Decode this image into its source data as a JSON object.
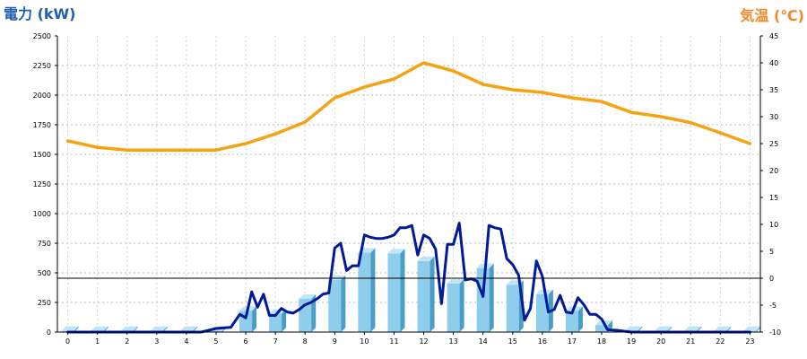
{
  "chart_data": {
    "type": "bar-line-combo",
    "left_axis_title": "電力 (kW)",
    "right_axis_title": "気温 (℃)",
    "left_axis_color": "#1F5FAD",
    "right_axis_color": "#F08A24",
    "x_ticks": [
      "0",
      "1",
      "2",
      "3",
      "4",
      "5",
      "6",
      "7",
      "8",
      "9",
      "10",
      "11",
      "12",
      "13",
      "14",
      "15",
      "16",
      "17",
      "18",
      "19",
      "20",
      "21",
      "22",
      "23"
    ],
    "y_left_ticks": [
      "0",
      "250",
      "500",
      "750",
      "1000",
      "1250",
      "1500",
      "1750",
      "2000",
      "2250",
      "2500"
    ],
    "y_right_ticks": [
      "-10",
      "-5",
      "0",
      "5",
      "10",
      "15",
      "20",
      "25",
      "30",
      "35",
      "40",
      "45"
    ],
    "ylim_left": [
      0,
      2500
    ],
    "ylim_right": [
      -10,
      45
    ],
    "xlim": [
      -0.35,
      23.35
    ],
    "grid": true,
    "series": [
      {
        "name": "",
        "type": "bar",
        "axis": "left",
        "color": "#8ECDEB",
        "x": [
          0,
          1,
          2,
          3,
          4,
          5,
          6,
          7,
          8,
          9,
          10,
          11,
          12,
          13,
          14,
          15,
          16,
          17,
          18,
          19,
          20,
          21,
          22,
          23
        ],
        "values": [
          10,
          10,
          10,
          10,
          10,
          10,
          180,
          155,
          280,
          440,
          670,
          665,
          600,
          410,
          540,
          400,
          320,
          180,
          60,
          10,
          10,
          10,
          10,
          10
        ]
      },
      {
        "name": "",
        "type": "line",
        "axis": "left",
        "color": "#001A99",
        "x": [
          0,
          1,
          2,
          3,
          4,
          4.5,
          5,
          5.5,
          5.8,
          6,
          6.2,
          6.4,
          6.6,
          6.8,
          7,
          7.2,
          7.4,
          7.6,
          7.8,
          8,
          8.2,
          8.4,
          8.6,
          8.8,
          9,
          9.2,
          9.4,
          9.6,
          9.8,
          10,
          10.2,
          10.4,
          10.6,
          10.8,
          11,
          11.2,
          11.4,
          11.6,
          11.8,
          12,
          12.2,
          12.4,
          12.6,
          12.8,
          13,
          13.2,
          13.4,
          13.6,
          13.8,
          14,
          14.2,
          14.4,
          14.6,
          14.8,
          15,
          15.2,
          15.4,
          15.6,
          15.8,
          16,
          16.2,
          16.4,
          16.6,
          16.8,
          17,
          17.2,
          17.4,
          17.6,
          17.8,
          18,
          18.2,
          18.5,
          19,
          20,
          21,
          22,
          23
        ],
        "values": [
          0,
          0,
          0,
          0,
          0,
          0,
          30,
          40,
          150,
          120,
          340,
          210,
          320,
          140,
          140,
          200,
          170,
          160,
          190,
          230,
          250,
          280,
          320,
          330,
          710,
          750,
          520,
          560,
          560,
          820,
          800,
          790,
          790,
          800,
          820,
          880,
          880,
          900,
          650,
          820,
          790,
          700,
          240,
          740,
          740,
          920,
          440,
          450,
          430,
          300,
          900,
          880,
          870,
          620,
          570,
          480,
          100,
          200,
          600,
          470,
          170,
          190,
          310,
          170,
          160,
          290,
          230,
          150,
          150,
          110,
          20,
          15,
          0,
          0,
          0,
          0,
          0
        ]
      },
      {
        "name": "",
        "type": "line",
        "axis": "right",
        "color": "#F5A312",
        "x": [
          0,
          1,
          2,
          3,
          4,
          5,
          6,
          7,
          8,
          9,
          10,
          11,
          12,
          13,
          14,
          15,
          16,
          17,
          18,
          19,
          20,
          21,
          22,
          23
        ],
        "values": [
          25.5,
          24.3,
          23.8,
          23.8,
          23.8,
          23.8,
          25,
          26.8,
          29,
          33.5,
          35.5,
          37,
          40,
          38.5,
          36,
          35,
          34.5,
          33.5,
          32.8,
          30.8,
          30,
          28.9,
          27,
          25
        ]
      }
    ]
  }
}
